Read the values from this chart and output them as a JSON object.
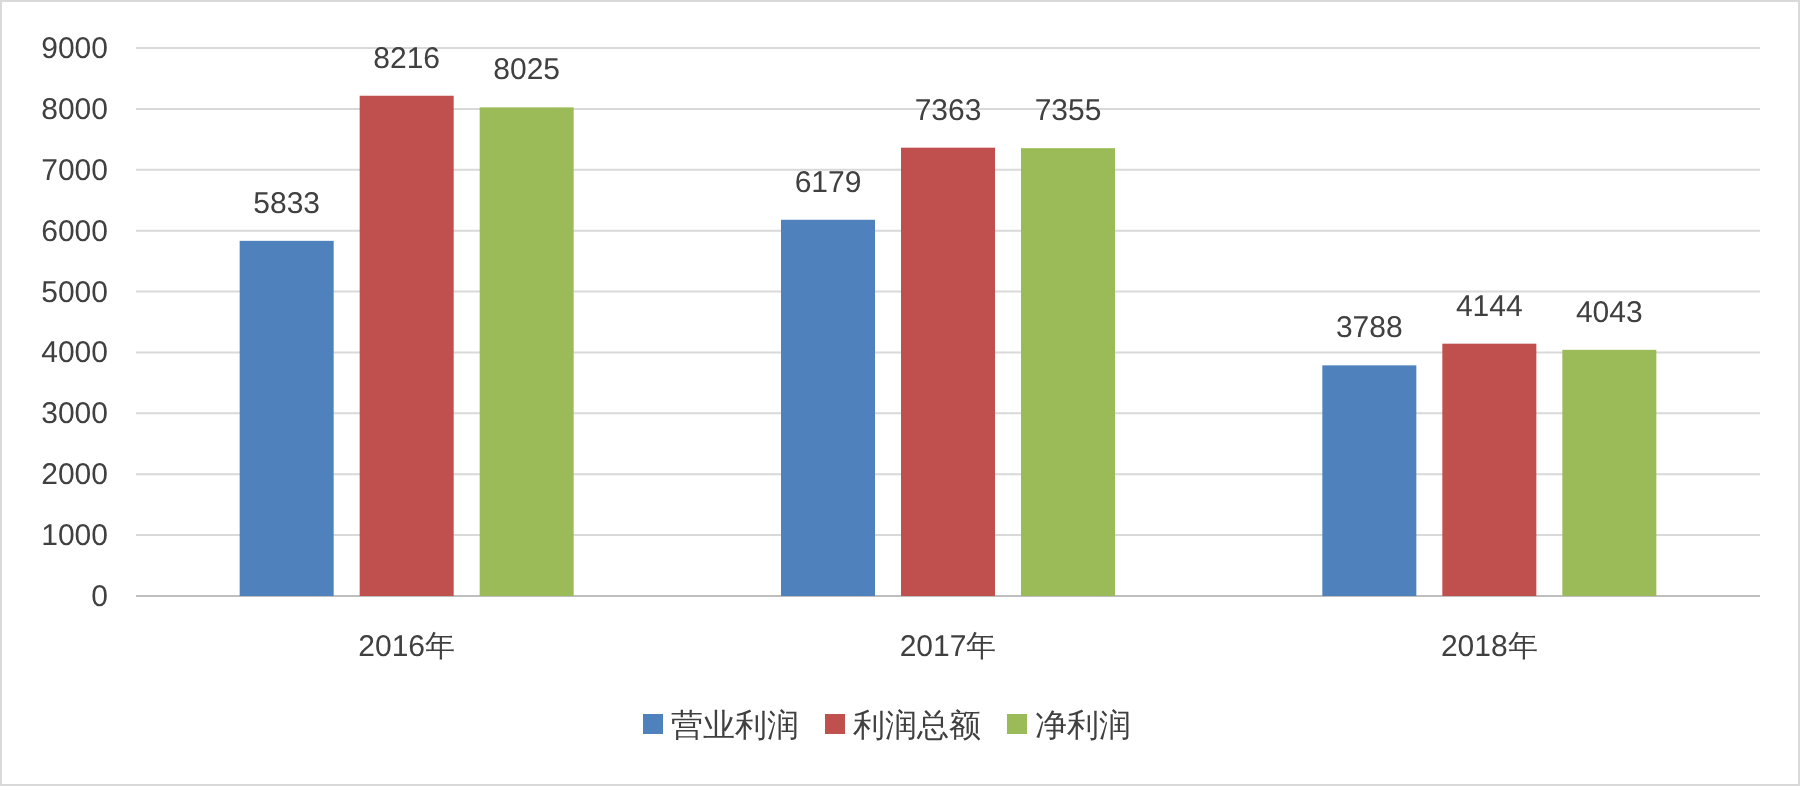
{
  "chart_data": {
    "type": "bar",
    "categories": [
      "2016年",
      "2017年",
      "2018年"
    ],
    "series": [
      {
        "name": "营业利润",
        "color": "#4f81bd",
        "values": [
          5833,
          6179,
          3788
        ]
      },
      {
        "name": "利润总额",
        "color": "#c0504d",
        "values": [
          8216,
          7363,
          4144
        ]
      },
      {
        "name": "净利润",
        "color": "#9bbb59",
        "values": [
          8025,
          7355,
          4043
        ]
      }
    ],
    "ylim": [
      0,
      9000
    ],
    "yticks": [
      0,
      1000,
      2000,
      3000,
      4000,
      5000,
      6000,
      7000,
      8000,
      9000
    ],
    "grid": "y",
    "legend": "bottom",
    "data_labels": true
  }
}
